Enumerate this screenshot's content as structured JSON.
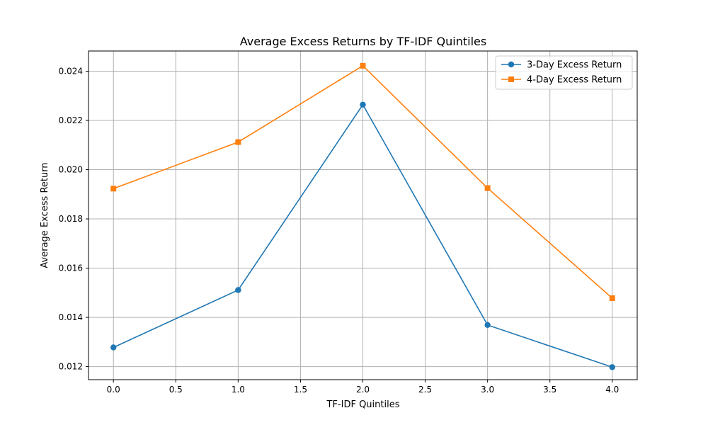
{
  "chart_data": {
    "type": "line",
    "title": "Average Excess Returns by TF-IDF Quintiles",
    "xlabel": "TF-IDF Quintiles",
    "ylabel": "Average Excess Return",
    "xlim": [
      -0.2,
      4.2
    ],
    "ylim": [
      0.01147,
      0.02482
    ],
    "xticks": [
      0.0,
      0.5,
      1.0,
      1.5,
      2.0,
      2.5,
      3.0,
      3.5,
      4.0
    ],
    "xtick_labels": [
      "0.0",
      "0.5",
      "1.0",
      "1.5",
      "2.0",
      "2.5",
      "3.0",
      "3.5",
      "4.0"
    ],
    "yticks": [
      0.012,
      0.014,
      0.016,
      0.018,
      0.02,
      0.022,
      0.024
    ],
    "ytick_labels": [
      "0.012",
      "0.014",
      "0.016",
      "0.018",
      "0.020",
      "0.022",
      "0.024"
    ],
    "grid": true,
    "legend_position": "top-right",
    "x": [
      0,
      1,
      2,
      3,
      4
    ],
    "series": [
      {
        "name": "3-Day Excess Return",
        "values": [
          0.01278,
          0.01511,
          0.02264,
          0.01369,
          0.01198
        ],
        "color": "#1f77b4",
        "marker": "circle"
      },
      {
        "name": "4-Day Excess Return",
        "values": [
          0.01923,
          0.02112,
          0.02422,
          0.01925,
          0.01478
        ],
        "color": "#ff7f0e",
        "marker": "square"
      }
    ]
  }
}
